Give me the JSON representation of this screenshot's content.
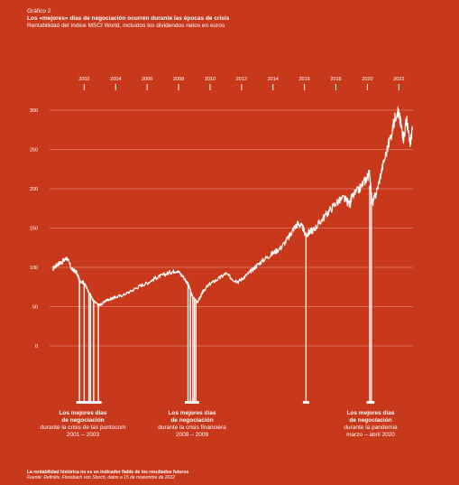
{
  "header": {
    "kicker": "Gráfico 2",
    "title": "Los «mejores» días de negociación ocurren durante las épocas de crisis",
    "subtitle": "Rentabilidad del índice MSCI World, incluidos los dividendos netos en euros"
  },
  "colors": {
    "background": "#c8381a",
    "foreground": "#ffffff"
  },
  "annotations": [
    {
      "line1": "Los mejores días",
      "line2": "de negociación",
      "line3": "durante la crisis de las puntocom",
      "line4": "2001 – 2003"
    },
    {
      "line1": "Los mejores días",
      "line2": "de negociación",
      "line3": "durante la crisis financiera",
      "line4": "2008 – 2009"
    },
    {
      "line1": "Los mejores días",
      "line2": "de negociación",
      "line3": "durante la pandemia",
      "line4": "marzo – abril 2020"
    }
  ],
  "footer": {
    "note": "La rentabilidad histórica no es un indicador fiable de los resultados futuros",
    "source": "Fuente: Refinitiv, Flossbach von Storch, datos a 15 de noviembre de 2022"
  },
  "chart_data": {
    "type": "line",
    "title": "Los «mejores» días de negociación ocurren durante las épocas de crisis",
    "subtitle": "Rentabilidad del índice MSCI World, incluidos los dividendos netos en euros",
    "xlabel": "",
    "ylabel": "",
    "x_ticks": [
      "2002",
      "2004",
      "2006",
      "2008",
      "2010",
      "2012",
      "2014",
      "2016",
      "2018",
      "2020",
      "2022"
    ],
    "x_tick_values": [
      2002,
      2004,
      2006,
      2008,
      2010,
      2012,
      2014,
      2016,
      2018,
      2020,
      2022
    ],
    "y_ticks": [
      "0",
      "50",
      "100",
      "150",
      "200",
      "250",
      "300"
    ],
    "y_tick_values": [
      0,
      50,
      100,
      150,
      200,
      250,
      300
    ],
    "xlim": [
      1999.8,
      2022.9
    ],
    "ylim": [
      0,
      300
    ],
    "grid": true,
    "series": [
      {
        "x": [
          2000.0,
          2000.3,
          2000.6,
          2000.9,
          2001.2,
          2001.5,
          2001.7,
          2002.0,
          2002.3,
          2002.6,
          2002.9,
          2003.1,
          2003.4,
          2003.7,
          2004.0,
          2004.5,
          2005.0,
          2005.5,
          2006.0,
          2006.5,
          2007.0,
          2007.5,
          2007.9,
          2008.3,
          2008.6,
          2008.9,
          2009.2,
          2009.4,
          2009.6,
          2010.0,
          2010.5,
          2011.0,
          2011.5,
          2011.8,
          2012.2,
          2012.6,
          2013.0,
          2013.5,
          2014.0,
          2014.5,
          2015.0,
          2015.3,
          2015.6,
          2015.9,
          2016.1,
          2016.3,
          2016.6,
          2017.0,
          2017.5,
          2018.0,
          2018.5,
          2018.9,
          2019.0,
          2019.5,
          2019.9,
          2020.15,
          2020.3,
          2020.6,
          2021.0,
          2021.5,
          2021.9,
          2022.1,
          2022.3,
          2022.5,
          2022.7,
          2022.87
        ],
        "y": [
          98,
          104,
          107,
          112,
          98,
          94,
          84,
          80,
          68,
          57,
          52,
          53,
          58,
          60,
          62,
          65,
          70,
          76,
          80,
          86,
          90,
          94,
          96,
          88,
          79,
          62,
          56,
          63,
          71,
          79,
          85,
          92,
          84,
          82,
          88,
          95,
          103,
          111,
          118,
          125,
          138,
          149,
          156,
          150,
          140,
          145,
          148,
          158,
          170,
          182,
          188,
          180,
          189,
          200,
          212,
          220,
          180,
          197,
          231,
          268,
          302,
          285,
          265,
          288,
          257,
          275
        ]
      }
    ],
    "highlight_periods": [
      "2001 – 2003",
      "2008 – 2009",
      "marzo – abril 2020"
    ]
  }
}
